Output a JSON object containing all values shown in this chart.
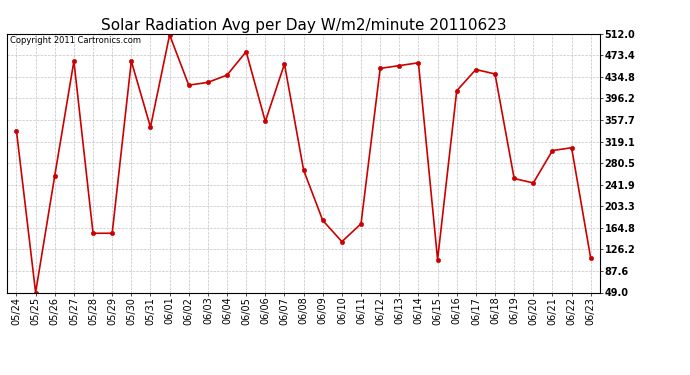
{
  "title": "Solar Radiation Avg per Day W/m2/minute 20110623",
  "copyright": "Copyright 2011 Cartronics.com",
  "dates": [
    "05/24",
    "05/25",
    "05/26",
    "05/27",
    "05/28",
    "05/29",
    "05/30",
    "05/31",
    "06/01",
    "06/02",
    "06/03",
    "06/04",
    "06/05",
    "06/06",
    "06/07",
    "06/08",
    "06/09",
    "06/10",
    "06/11",
    "06/12",
    "06/13",
    "06/14",
    "06/15",
    "06/16",
    "06/17",
    "06/18",
    "06/19",
    "06/20",
    "06/21",
    "06/22",
    "06/23"
  ],
  "values": [
    338,
    49,
    258,
    463,
    155,
    155,
    463,
    345,
    510,
    420,
    425,
    438,
    480,
    355,
    458,
    268,
    178,
    140,
    172,
    450,
    455,
    460,
    108,
    410,
    448,
    440,
    253,
    245,
    303,
    308,
    110
  ],
  "line_color": "#cc0000",
  "marker": "o",
  "marker_size": 3,
  "bg_color": "#ffffff",
  "grid_color": "#aaaaaa",
  "yticks": [
    49.0,
    87.6,
    126.2,
    164.8,
    203.3,
    241.9,
    280.5,
    319.1,
    357.7,
    396.2,
    434.8,
    473.4,
    512.0
  ],
  "ymin": 49.0,
  "ymax": 512.0,
  "title_fontsize": 11,
  "copyright_fontsize": 6,
  "tick_fontsize": 7,
  "ytick_fontsize": 7
}
